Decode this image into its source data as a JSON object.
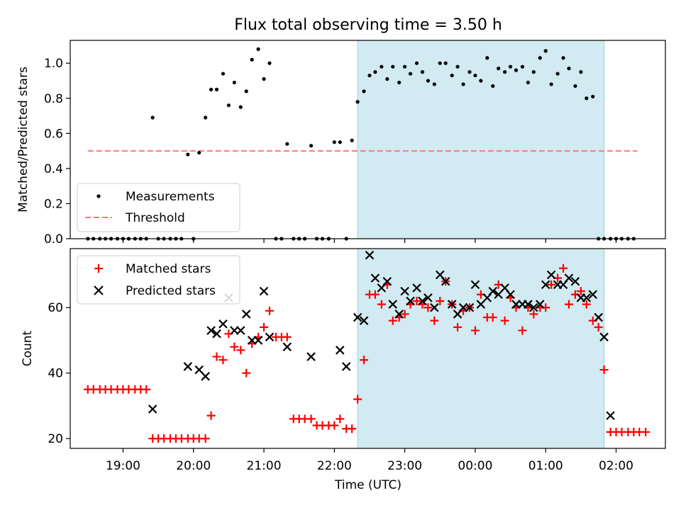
{
  "title": "Flux total observing time = 3.50 h",
  "colors": {
    "measurement": "#000000",
    "threshold": "#ff7777",
    "matched": "#ff0000",
    "predicted": "#000000",
    "observing_window": "#add8e6"
  },
  "chart_data": [
    {
      "type": "scatter",
      "ylabel": "Matched/Predicted stars",
      "xlabel": "",
      "xlim": [
        -0.75,
        7.7
      ],
      "ylim": [
        0,
        1.13
      ],
      "yticks": [
        0.0,
        0.2,
        0.4,
        0.6,
        0.8,
        1.0
      ],
      "ytick_labels": [
        "0.0",
        "0.2",
        "0.4",
        "0.6",
        "0.8",
        "1.0"
      ],
      "grid": false,
      "legend_position": "lower-left",
      "observing_window": [
        3.33,
        6.83
      ],
      "threshold": {
        "name": "Threshold",
        "value": 0.5,
        "x_range": [
          -0.5,
          7.3
        ]
      },
      "series": [
        {
          "name": "Measurements",
          "marker": "dot",
          "points": [
            [
              -0.5,
              0
            ],
            [
              -0.42,
              0
            ],
            [
              -0.33,
              0
            ],
            [
              -0.25,
              0
            ],
            [
              -0.17,
              0
            ],
            [
              -0.08,
              0
            ],
            [
              0.0,
              0
            ],
            [
              0.08,
              0
            ],
            [
              0.17,
              0
            ],
            [
              0.25,
              0
            ],
            [
              0.33,
              0
            ],
            [
              0.42,
              0.69
            ],
            [
              0.5,
              0
            ],
            [
              0.58,
              0
            ],
            [
              0.67,
              0
            ],
            [
              0.75,
              0
            ],
            [
              0.83,
              0
            ],
            [
              0.92,
              0.48
            ],
            [
              1.0,
              0
            ],
            [
              1.08,
              0.49
            ],
            [
              1.17,
              0.69
            ],
            [
              1.25,
              0.85
            ],
            [
              1.33,
              0.85
            ],
            [
              1.42,
              0.94
            ],
            [
              1.5,
              0.76
            ],
            [
              1.58,
              0.89
            ],
            [
              1.67,
              0.75
            ],
            [
              1.75,
              0.84
            ],
            [
              1.83,
              1.02
            ],
            [
              1.92,
              1.08
            ],
            [
              2.0,
              0.91
            ],
            [
              2.08,
              1.0
            ],
            [
              2.17,
              0
            ],
            [
              2.25,
              0
            ],
            [
              2.33,
              0.54
            ],
            [
              2.42,
              0
            ],
            [
              2.5,
              0
            ],
            [
              2.58,
              0
            ],
            [
              2.67,
              0.53
            ],
            [
              2.75,
              0
            ],
            [
              2.83,
              0
            ],
            [
              2.92,
              0
            ],
            [
              3.0,
              0.55
            ],
            [
              3.08,
              0.55
            ],
            [
              3.17,
              0
            ],
            [
              3.25,
              0.56
            ],
            [
              3.33,
              0.78
            ],
            [
              3.42,
              0.84
            ],
            [
              3.5,
              0.93
            ],
            [
              3.58,
              0.95
            ],
            [
              3.67,
              0.98
            ],
            [
              3.75,
              0.91
            ],
            [
              3.83,
              0.98
            ],
            [
              3.92,
              0.89
            ],
            [
              4.0,
              0.98
            ],
            [
              4.08,
              0.94
            ],
            [
              4.17,
              1.0
            ],
            [
              4.25,
              0.95
            ],
            [
              4.33,
              0.9
            ],
            [
              4.42,
              0.88
            ],
            [
              4.5,
              1.0
            ],
            [
              4.58,
              1.0
            ],
            [
              4.67,
              0.93
            ],
            [
              4.75,
              0.98
            ],
            [
              4.83,
              0.88
            ],
            [
              4.92,
              0.95
            ],
            [
              5.0,
              0.93
            ],
            [
              5.08,
              0.9
            ],
            [
              5.17,
              1.03
            ],
            [
              5.25,
              0.87
            ],
            [
              5.33,
              0.97
            ],
            [
              5.42,
              0.95
            ],
            [
              5.5,
              0.98
            ],
            [
              5.58,
              0.96
            ],
            [
              5.67,
              0.98
            ],
            [
              5.75,
              0.89
            ],
            [
              5.83,
              0.95
            ],
            [
              5.92,
              1.03
            ],
            [
              6.0,
              1.07
            ],
            [
              6.08,
              0.88
            ],
            [
              6.17,
              0.94
            ],
            [
              6.25,
              1.03
            ],
            [
              6.33,
              0.97
            ],
            [
              6.42,
              0.87
            ],
            [
              6.5,
              0.95
            ],
            [
              6.58,
              0.8
            ],
            [
              6.67,
              0.81
            ],
            [
              6.75,
              0
            ],
            [
              6.83,
              0
            ],
            [
              6.92,
              0
            ],
            [
              7.0,
              0
            ],
            [
              7.08,
              0
            ],
            [
              7.17,
              0
            ],
            [
              7.25,
              0
            ]
          ]
        }
      ]
    },
    {
      "type": "scatter",
      "ylabel": "Count",
      "xlabel": "Time (UTC)",
      "xlim": [
        -0.75,
        7.7
      ],
      "ylim": [
        17,
        78
      ],
      "yticks": [
        20,
        40,
        60
      ],
      "ytick_labels": [
        "20",
        "40",
        "60"
      ],
      "xticks": [
        0,
        1,
        2,
        3,
        4,
        5,
        6,
        7
      ],
      "xtick_labels": [
        "19:00",
        "20:00",
        "21:00",
        "22:00",
        "23:00",
        "00:00",
        "01:00",
        "02:00"
      ],
      "grid": false,
      "legend_position": "upper-left",
      "observing_window": [
        3.33,
        6.83
      ],
      "series": [
        {
          "name": "Matched stars",
          "marker": "plus",
          "points": [
            [
              -0.5,
              35
            ],
            [
              -0.42,
              35
            ],
            [
              -0.33,
              35
            ],
            [
              -0.25,
              35
            ],
            [
              -0.17,
              35
            ],
            [
              -0.08,
              35
            ],
            [
              0.0,
              35
            ],
            [
              0.08,
              35
            ],
            [
              0.17,
              35
            ],
            [
              0.25,
              35
            ],
            [
              0.33,
              35
            ],
            [
              0.42,
              20
            ],
            [
              0.5,
              20
            ],
            [
              0.58,
              20
            ],
            [
              0.67,
              20
            ],
            [
              0.75,
              20
            ],
            [
              0.83,
              20
            ],
            [
              0.92,
              20
            ],
            [
              1.0,
              20
            ],
            [
              1.08,
              20
            ],
            [
              1.17,
              20
            ],
            [
              1.25,
              27
            ],
            [
              1.33,
              45
            ],
            [
              1.42,
              44
            ],
            [
              1.5,
              52
            ],
            [
              1.58,
              48
            ],
            [
              1.67,
              47
            ],
            [
              1.75,
              40
            ],
            [
              1.83,
              49
            ],
            [
              1.92,
              51
            ],
            [
              2.0,
              54
            ],
            [
              2.08,
              59
            ],
            [
              2.17,
              51
            ],
            [
              2.25,
              51
            ],
            [
              2.33,
              51
            ],
            [
              2.42,
              26
            ],
            [
              2.5,
              26
            ],
            [
              2.58,
              26
            ],
            [
              2.67,
              26
            ],
            [
              2.75,
              24
            ],
            [
              2.83,
              24
            ],
            [
              2.92,
              24
            ],
            [
              3.0,
              24
            ],
            [
              3.08,
              26
            ],
            [
              3.17,
              23
            ],
            [
              3.25,
              23
            ],
            [
              3.33,
              32
            ],
            [
              3.42,
              44
            ],
            [
              3.5,
              64
            ],
            [
              3.58,
              64
            ],
            [
              3.67,
              61
            ],
            [
              3.75,
              67
            ],
            [
              3.83,
              56
            ],
            [
              3.92,
              57
            ],
            [
              4.0,
              58
            ],
            [
              4.08,
              61
            ],
            [
              4.17,
              62
            ],
            [
              4.25,
              61
            ],
            [
              4.33,
              60
            ],
            [
              4.42,
              56
            ],
            [
              4.5,
              62
            ],
            [
              4.58,
              68
            ],
            [
              4.67,
              61
            ],
            [
              4.75,
              54
            ],
            [
              4.83,
              59
            ],
            [
              4.92,
              60
            ],
            [
              5.0,
              53
            ],
            [
              5.08,
              64
            ],
            [
              5.17,
              57
            ],
            [
              5.25,
              57
            ],
            [
              5.33,
              67
            ],
            [
              5.42,
              56
            ],
            [
              5.5,
              63
            ],
            [
              5.58,
              60
            ],
            [
              5.67,
              53
            ],
            [
              5.75,
              60
            ],
            [
              5.83,
              58
            ],
            [
              5.92,
              60
            ],
            [
              6.0,
              60
            ],
            [
              6.08,
              67
            ],
            [
              6.17,
              69
            ],
            [
              6.25,
              72
            ],
            [
              6.33,
              61
            ],
            [
              6.42,
              64
            ],
            [
              6.5,
              65
            ],
            [
              6.58,
              61
            ],
            [
              6.67,
              56
            ],
            [
              6.75,
              54
            ],
            [
              6.83,
              41
            ],
            [
              6.92,
              22
            ],
            [
              7.0,
              22
            ],
            [
              7.08,
              22
            ],
            [
              7.17,
              22
            ],
            [
              7.25,
              22
            ],
            [
              7.33,
              22
            ],
            [
              7.42,
              22
            ]
          ]
        },
        {
          "name": "Predicted stars",
          "marker": "x",
          "points": [
            [
              0.42,
              29
            ],
            [
              0.92,
              42
            ],
            [
              1.08,
              41
            ],
            [
              1.17,
              39
            ],
            [
              1.25,
              53
            ],
            [
              1.33,
              52
            ],
            [
              1.42,
              55
            ],
            [
              1.5,
              63
            ],
            [
              1.58,
              53
            ],
            [
              1.67,
              53
            ],
            [
              1.75,
              58
            ],
            [
              1.83,
              50
            ],
            [
              1.92,
              50
            ],
            [
              2.0,
              65
            ],
            [
              2.08,
              51
            ],
            [
              2.33,
              48
            ],
            [
              2.67,
              45
            ],
            [
              3.08,
              47
            ],
            [
              3.17,
              42
            ],
            [
              3.33,
              57
            ],
            [
              3.42,
              56
            ],
            [
              3.5,
              76
            ],
            [
              3.58,
              69
            ],
            [
              3.67,
              66
            ],
            [
              3.75,
              68
            ],
            [
              3.83,
              61
            ],
            [
              3.92,
              58
            ],
            [
              4.0,
              65
            ],
            [
              4.08,
              62
            ],
            [
              4.17,
              66
            ],
            [
              4.25,
              62
            ],
            [
              4.33,
              63
            ],
            [
              4.42,
              60
            ],
            [
              4.5,
              70
            ],
            [
              4.58,
              68
            ],
            [
              4.67,
              61
            ],
            [
              4.75,
              58
            ],
            [
              4.83,
              60
            ],
            [
              4.92,
              60
            ],
            [
              5.0,
              67
            ],
            [
              5.08,
              61
            ],
            [
              5.17,
              63
            ],
            [
              5.25,
              65
            ],
            [
              5.33,
              64
            ],
            [
              5.42,
              66
            ],
            [
              5.5,
              64
            ],
            [
              5.58,
              61
            ],
            [
              5.67,
              61
            ],
            [
              5.75,
              61
            ],
            [
              5.83,
              60
            ],
            [
              5.92,
              61
            ],
            [
              6.0,
              67
            ],
            [
              6.08,
              70
            ],
            [
              6.17,
              67
            ],
            [
              6.25,
              67
            ],
            [
              6.33,
              69
            ],
            [
              6.42,
              68
            ],
            [
              6.5,
              63
            ],
            [
              6.58,
              63
            ],
            [
              6.67,
              64
            ],
            [
              6.75,
              57
            ],
            [
              6.83,
              51
            ],
            [
              6.92,
              27
            ]
          ]
        }
      ]
    }
  ]
}
